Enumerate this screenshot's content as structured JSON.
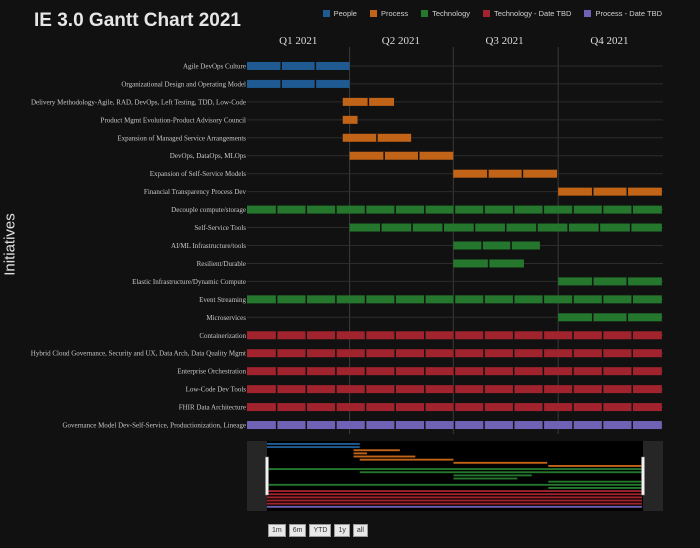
{
  "title": "IE 3.0 Gantt Chart 2021",
  "ylabel": "Initiatives",
  "legend": [
    {
      "label": "People",
      "color": "#1f5b92"
    },
    {
      "label": "Process",
      "color": "#c26417"
    },
    {
      "label": "Technology",
      "color": "#24772c"
    },
    {
      "label": "Technology - Date TBD",
      "color": "#a0232d"
    },
    {
      "label": "Process - Date TBD",
      "color": "#6f62b4"
    }
  ],
  "range_buttons": [
    "1m",
    "6m",
    "YTD",
    "1y",
    "all"
  ],
  "chart_data": {
    "type": "gantt",
    "title": "IE 3.0 Gantt Chart 2021",
    "ylabel": "Initiatives",
    "x_axis": {
      "range": [
        "2021-01-01",
        "2021-12-31"
      ],
      "tick_labels": [
        "Q1 2021",
        "Q2 2021",
        "Q3 2021",
        "Q4 2021"
      ]
    },
    "grid": true,
    "legend_position": "top-right",
    "rangeslider": true,
    "tasks": [
      {
        "name": "Agile DevOps Culture",
        "category": "People",
        "start": "2021-01-01",
        "end": "2021-04-01"
      },
      {
        "name": "Organizational Design and Operating Model",
        "category": "People",
        "start": "2021-01-01",
        "end": "2021-04-01"
      },
      {
        "name": "Delivery Methodology-Agile, RAD, DevOps, Left Testing, TDD, Low-Code",
        "category": "Process",
        "start": "2021-03-26",
        "end": "2021-05-10"
      },
      {
        "name": "Product Mgmt Evolution-Product Advisory Council",
        "category": "Process",
        "start": "2021-03-26",
        "end": "2021-04-08"
      },
      {
        "name": "Expansion of Managed Service Arrangements",
        "category": "Process",
        "start": "2021-03-26",
        "end": "2021-05-25"
      },
      {
        "name": "DevOps, DataOps, MLOps",
        "category": "Process",
        "start": "2021-04-01",
        "end": "2021-07-01"
      },
      {
        "name": "Expansion of Self-Service Models",
        "category": "Process",
        "start": "2021-07-01",
        "end": "2021-09-30"
      },
      {
        "name": "Financial Transparency Process Dev",
        "category": "Process",
        "start": "2021-10-01",
        "end": "2021-12-31"
      },
      {
        "name": "Decouple compute/storage",
        "category": "Technology",
        "start": "2021-01-01",
        "end": "2021-12-31"
      },
      {
        "name": "Self-Service Tools",
        "category": "Technology",
        "start": "2021-04-01",
        "end": "2021-12-31"
      },
      {
        "name": "AI/ML Infrastructure/tools",
        "category": "Technology",
        "start": "2021-07-01",
        "end": "2021-09-15"
      },
      {
        "name": "Resilient/Durable",
        "category": "Technology",
        "start": "2021-07-01",
        "end": "2021-09-01"
      },
      {
        "name": "Elastic Infrastructure/Dynamic Compute",
        "category": "Technology",
        "start": "2021-10-01",
        "end": "2021-12-31"
      },
      {
        "name": "Event Streaming",
        "category": "Technology",
        "start": "2021-01-01",
        "end": "2021-12-31"
      },
      {
        "name": "Microservices",
        "category": "Technology",
        "start": "2021-10-01",
        "end": "2021-12-31"
      },
      {
        "name": "Containerization",
        "category": "Technology - Date TBD",
        "start": "2021-01-01",
        "end": "2021-12-31"
      },
      {
        "name": "Hybrid Cloud Governance, Security and UX, Data Arch, Data Quality Mgmt",
        "category": "Technology - Date TBD",
        "start": "2021-01-01",
        "end": "2021-12-31"
      },
      {
        "name": "Enterprise Orchestration",
        "category": "Technology - Date TBD",
        "start": "2021-01-01",
        "end": "2021-12-31"
      },
      {
        "name": "Low-Code Dev Tools",
        "category": "Technology - Date TBD",
        "start": "2021-01-01",
        "end": "2021-12-31"
      },
      {
        "name": "FHIR Data Architecture",
        "category": "Technology - Date TBD",
        "start": "2021-01-01",
        "end": "2021-12-31"
      },
      {
        "name": "Governance Model Dev-Self-Service, Productionization, Lineage",
        "category": "Process - Date TBD",
        "start": "2021-01-01",
        "end": "2021-12-31"
      }
    ]
  }
}
